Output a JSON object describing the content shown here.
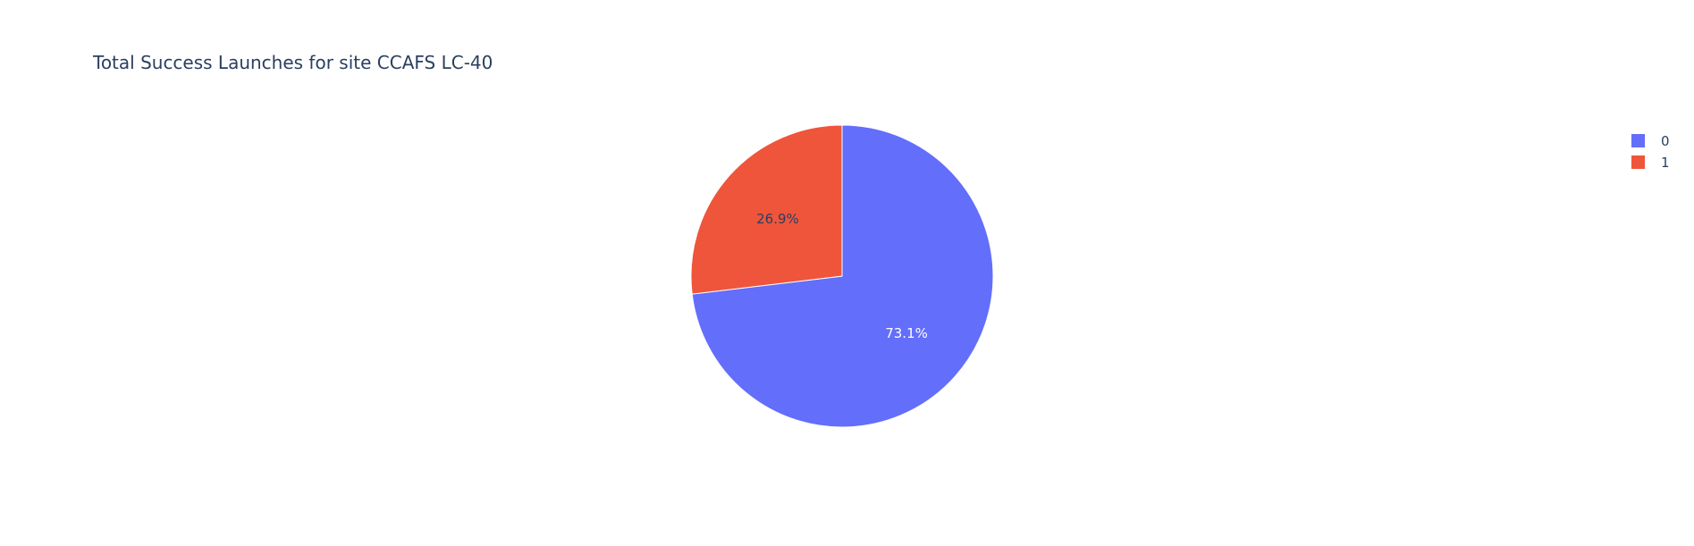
{
  "chart_data": {
    "type": "pie",
    "title": "Total Success Launches for site CCAFS LC-40",
    "slices": [
      {
        "label": "0",
        "value": 73.1,
        "text": "73.1%",
        "color": "#636efa",
        "text_color": "#ffffff"
      },
      {
        "label": "1",
        "value": 26.9,
        "text": "26.9%",
        "color": "#ef553b",
        "text_color": "#2a3f5f"
      }
    ],
    "legend": {
      "position": "top-right",
      "entries": [
        "0",
        "1"
      ]
    },
    "slice_border_color": "#ffffff"
  }
}
